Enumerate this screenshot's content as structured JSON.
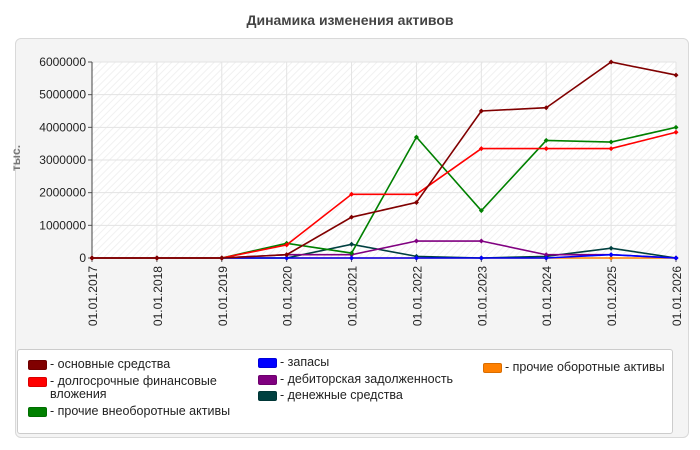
{
  "chart_data": {
    "type": "line",
    "title": "Динамика изменения активов",
    "ylabel": "тыс.",
    "xlabel": "",
    "ylim": [
      0,
      6000000
    ],
    "yticks": [
      0,
      1000000,
      2000000,
      3000000,
      4000000,
      5000000,
      6000000
    ],
    "categories": [
      "01.01.2017",
      "01.01.2018",
      "01.01.2019",
      "01.01.2020",
      "01.01.2021",
      "01.01.2022",
      "01.01.2023",
      "01.01.2024",
      "01.01.2025",
      "01.01.2026"
    ],
    "grid": true,
    "legend_position": "bottom",
    "series": [
      {
        "name": "- основные средства",
        "color": "#800000",
        "values": [
          0,
          0,
          0,
          100000,
          1250000,
          1700000,
          4500000,
          4600000,
          6000000,
          5600000
        ]
      },
      {
        "name": "- долгосрочные финансовые вложения",
        "color": "#ff0000",
        "values": [
          0,
          0,
          0,
          400000,
          1950000,
          1950000,
          3350000,
          3350000,
          3350000,
          3850000
        ]
      },
      {
        "name": "- прочие внеоборотные активы",
        "color": "#008000",
        "values": [
          0,
          0,
          0,
          450000,
          150000,
          3700000,
          1450000,
          3600000,
          3550000,
          4000000
        ]
      },
      {
        "name": "- запасы",
        "color": "#0000ff",
        "values": [
          0,
          0,
          0,
          0,
          0,
          0,
          0,
          0,
          100000,
          0
        ]
      },
      {
        "name": "- дебиторская задолженность",
        "color": "#800080",
        "values": [
          0,
          0,
          0,
          100000,
          100000,
          520000,
          520000,
          100000,
          100000,
          0
        ]
      },
      {
        "name": "- денежные средства",
        "color": "#004040",
        "values": [
          0,
          0,
          0,
          0,
          420000,
          50000,
          0,
          50000,
          300000,
          0
        ]
      },
      {
        "name": "- прочие оборотные активы",
        "color": "#ff8000",
        "values": [
          0,
          0,
          0,
          0,
          0,
          0,
          0,
          0,
          0,
          0
        ]
      }
    ]
  }
}
